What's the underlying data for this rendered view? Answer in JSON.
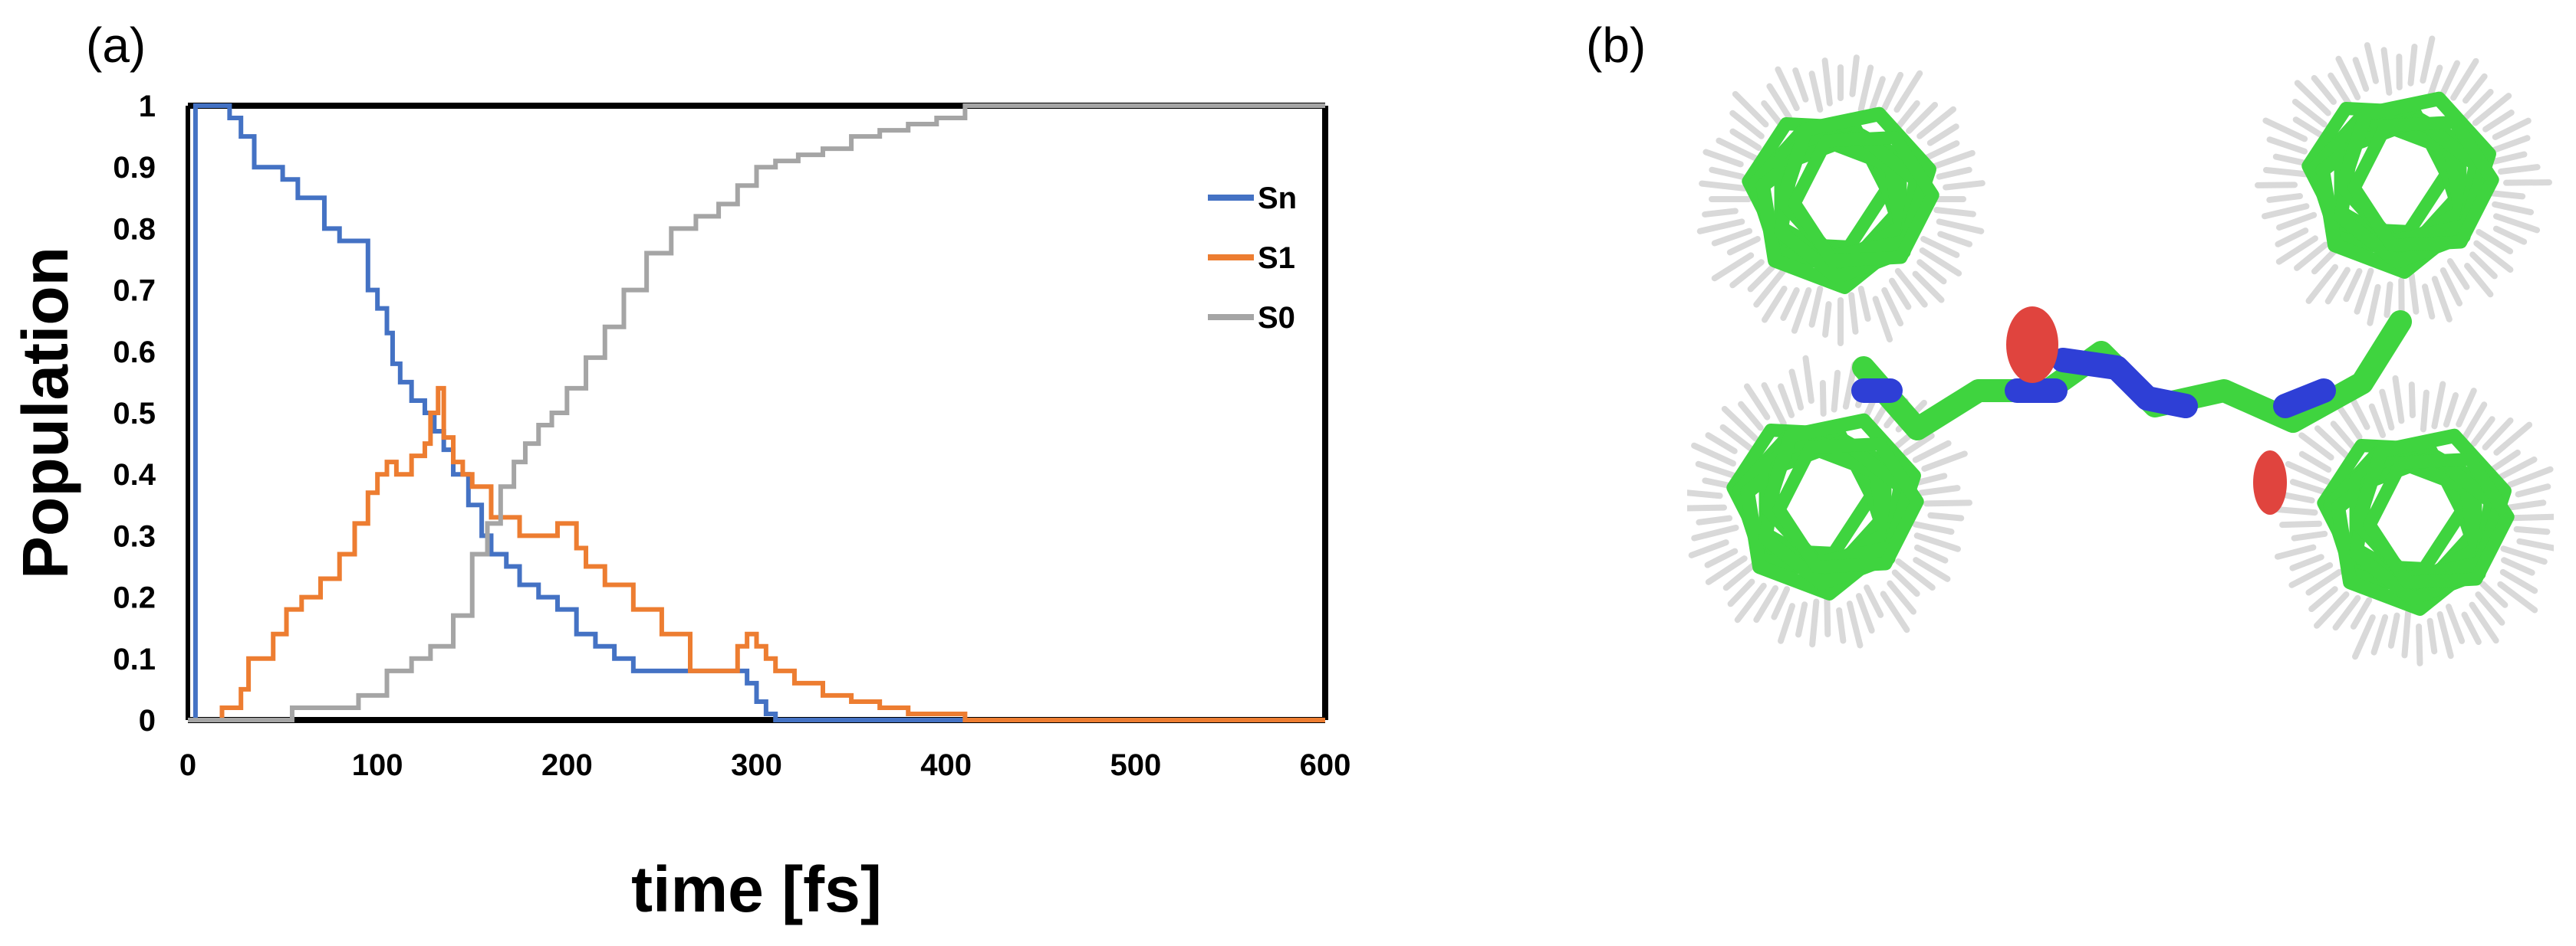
{
  "panels": {
    "a": "(a)",
    "b": "(b)"
  },
  "colors": {
    "Sn": "#4472c4",
    "S1": "#ed7d31",
    "S0": "#a5a5a5",
    "carbon": "#3fd43f",
    "hydrogen": "#d9d9d9",
    "nitrogen": "#2e3fd6",
    "oxygen": "#e0443e"
  },
  "chart_data": {
    "type": "line",
    "title": "",
    "xlabel": "time [fs]",
    "ylabel": "Population",
    "xlim": [
      0,
      600
    ],
    "ylim": [
      0,
      1
    ],
    "xticks": [
      "0",
      "100",
      "200",
      "300",
      "400",
      "500",
      "600"
    ],
    "yticks": [
      "0",
      "0.1",
      "0.2",
      "0.3",
      "0.4",
      "0.5",
      "0.6",
      "0.7",
      "0.8",
      "0.9",
      "1"
    ],
    "legend_position": "top-right",
    "series": [
      {
        "name": "Sn",
        "color": "#4472c4",
        "step": true,
        "x": [
          0,
          4,
          22,
          28,
          35,
          50,
          58,
          72,
          80,
          95,
          100,
          105,
          108,
          112,
          118,
          125,
          130,
          135,
          140,
          148,
          155,
          160,
          168,
          175,
          185,
          195,
          205,
          215,
          225,
          235,
          250,
          265,
          280,
          295,
          300,
          305,
          310,
          410,
          600
        ],
        "y": [
          0,
          1.0,
          0.98,
          0.95,
          0.9,
          0.88,
          0.85,
          0.8,
          0.78,
          0.7,
          0.67,
          0.63,
          0.58,
          0.55,
          0.52,
          0.5,
          0.47,
          0.44,
          0.4,
          0.35,
          0.3,
          0.27,
          0.25,
          0.22,
          0.2,
          0.18,
          0.14,
          0.12,
          0.1,
          0.08,
          0.08,
          0.08,
          0.08,
          0.06,
          0.03,
          0.01,
          0.0,
          0.0,
          0.0
        ]
      },
      {
        "name": "S1",
        "color": "#ed7d31",
        "step": true,
        "x": [
          0,
          18,
          28,
          32,
          45,
          52,
          60,
          70,
          80,
          88,
          95,
          100,
          105,
          110,
          118,
          125,
          128,
          132,
          135,
          140,
          145,
          150,
          160,
          175,
          185,
          195,
          205,
          210,
          220,
          235,
          250,
          265,
          280,
          290,
          295,
          300,
          305,
          310,
          320,
          335,
          350,
          365,
          380,
          390,
          410,
          600
        ],
        "y": [
          0,
          0.02,
          0.05,
          0.1,
          0.14,
          0.18,
          0.2,
          0.23,
          0.27,
          0.32,
          0.37,
          0.4,
          0.42,
          0.4,
          0.43,
          0.45,
          0.5,
          0.54,
          0.46,
          0.42,
          0.4,
          0.38,
          0.33,
          0.3,
          0.3,
          0.32,
          0.28,
          0.25,
          0.22,
          0.18,
          0.14,
          0.08,
          0.08,
          0.12,
          0.14,
          0.12,
          0.1,
          0.08,
          0.06,
          0.04,
          0.03,
          0.02,
          0.01,
          0.01,
          0.0,
          0.0
        ]
      },
      {
        "name": "S0",
        "color": "#a5a5a5",
        "step": true,
        "x": [
          0,
          55,
          90,
          105,
          118,
          128,
          140,
          150,
          158,
          165,
          172,
          178,
          185,
          192,
          200,
          210,
          220,
          230,
          242,
          255,
          268,
          280,
          290,
          300,
          310,
          322,
          335,
          350,
          365,
          380,
          395,
          410,
          600
        ],
        "y": [
          0,
          0.02,
          0.04,
          0.08,
          0.1,
          0.12,
          0.17,
          0.27,
          0.32,
          0.38,
          0.42,
          0.45,
          0.48,
          0.5,
          0.54,
          0.59,
          0.64,
          0.7,
          0.76,
          0.8,
          0.82,
          0.84,
          0.87,
          0.9,
          0.91,
          0.92,
          0.93,
          0.95,
          0.96,
          0.97,
          0.98,
          1.0,
          1.0
        ]
      }
    ]
  }
}
